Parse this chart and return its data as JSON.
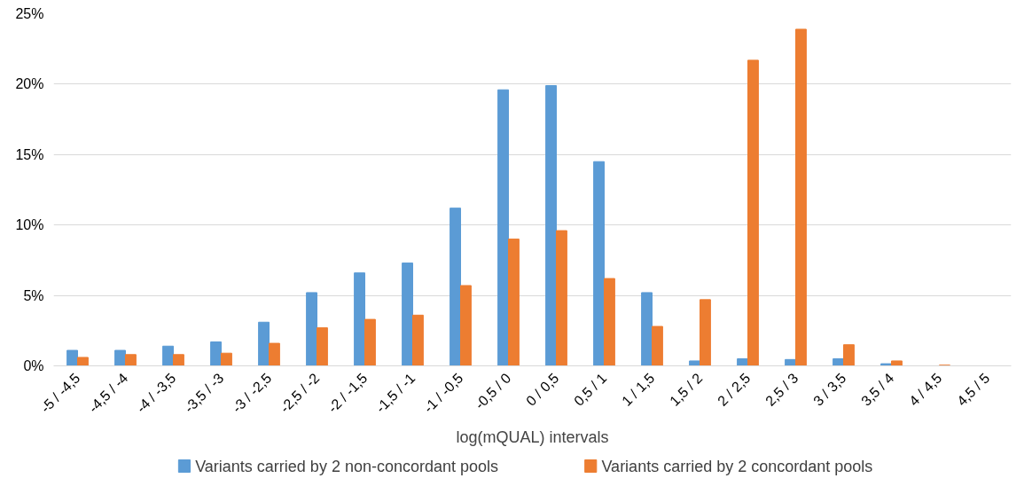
{
  "chart_data": {
    "type": "bar",
    "xlabel": "log(mQUAL) intervals",
    "categories": [
      "-5 / -4,5",
      "-4,5 / -4",
      "-4 / -3,5",
      "-3,5 / -3",
      "-3 / -2,5",
      "-2,5 / -2",
      "-2 / -1,5",
      "-1,5 / -1",
      "-1 / -0,5",
      "-0,5 / 0",
      "0 / 0,5",
      "0,5 / 1",
      "1 / 1,5",
      "1,5 / 2",
      "2 / 2,5",
      "2,5 / 3",
      "3 / 3,5",
      "3,5 / 4",
      "4 / 4,5",
      "4,5 / 5"
    ],
    "series": [
      {
        "name": "Variants carried by 2 non-concordant pools",
        "color": "#5b9bd5",
        "values": [
          1.1,
          1.1,
          1.4,
          1.7,
          3.1,
          5.2,
          6.6,
          7.3,
          11.2,
          19.6,
          19.9,
          14.5,
          5.2,
          0.35,
          0.5,
          0.45,
          0.5,
          0.15,
          0,
          0
        ]
      },
      {
        "name": "Variants carried by 2 concordant pools",
        "color": "#ed7d31",
        "values": [
          0.6,
          0.8,
          0.8,
          0.9,
          1.6,
          2.7,
          3.3,
          3.6,
          5.7,
          9.0,
          9.6,
          6.2,
          2.8,
          4.7,
          21.7,
          23.9,
          1.5,
          0.35,
          0.05,
          0
        ]
      }
    ],
    "ylim": [
      0,
      25
    ],
    "yticks": [
      {
        "value": 0,
        "label": "0%"
      },
      {
        "value": 5,
        "label": "5%"
      },
      {
        "value": 10,
        "label": "10%"
      },
      {
        "value": 15,
        "label": "15%"
      },
      {
        "value": 20,
        "label": "20%"
      },
      {
        "value": 25,
        "label": "25%"
      }
    ],
    "grid": "y",
    "legend": "bottom"
  }
}
